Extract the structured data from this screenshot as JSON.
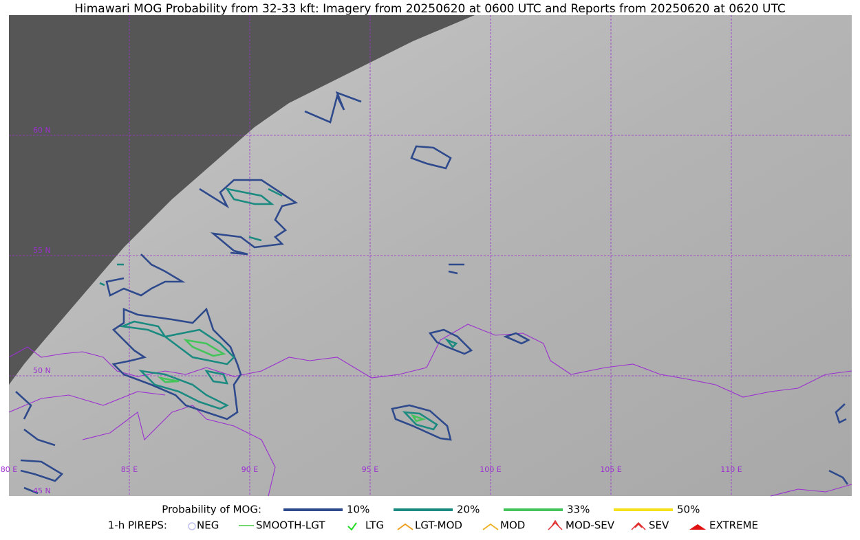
{
  "title": "Himawari MOG Probability from 32-33 kft: Imagery from 20250620 at 0600 UTC and Reports from 20250620 at 0620 UTC",
  "map": {
    "lat_labels": [
      "60 N",
      "55 N",
      "50 N",
      "45 N"
    ],
    "lon_labels": [
      "80 E",
      "85 E",
      "90 E",
      "95 E",
      "100 E",
      "105 E",
      "110 E"
    ]
  },
  "legend": {
    "mog_title": "Probability of MOG:",
    "mog_levels": [
      {
        "label": "10%",
        "color": "#2e4a8c"
      },
      {
        "label": "20%",
        "color": "#1b8a80"
      },
      {
        "label": "33%",
        "color": "#44c45a"
      },
      {
        "label": "50%",
        "color": "#f5e11a"
      }
    ],
    "pireps_title": "1-h PIREPS:",
    "pireps": [
      "NEG",
      "SMOOTH-LGT",
      "LTG",
      "LGT-MOD",
      "MOD",
      "MOD-SEV",
      "SEV",
      "EXTREME"
    ]
  }
}
